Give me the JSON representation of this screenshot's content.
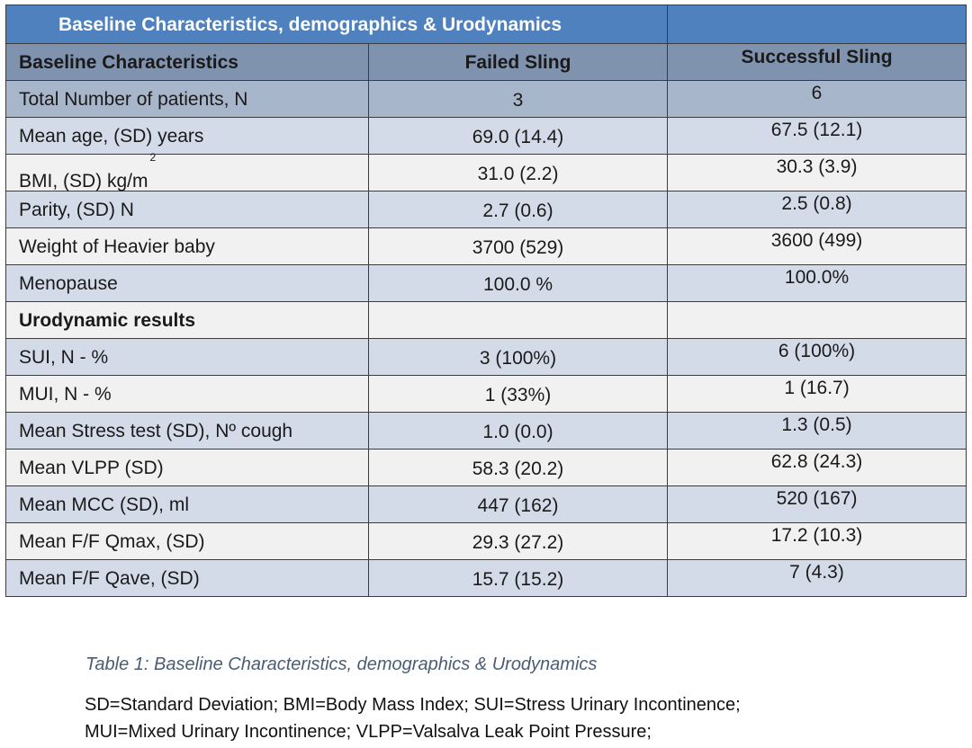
{
  "table": {
    "title": "Baseline Characteristics, demographics & Urodynamics",
    "columns": [
      "Baseline Characteristics",
      "Failed Sling",
      "Successful Sling"
    ],
    "rows": [
      {
        "label": "Total Number of patients, N",
        "failed": "3",
        "successful": "6"
      },
      {
        "label": "Mean age, (SD) years",
        "failed": "69.0 (14.4)",
        "successful": "67.5 (12.1)"
      },
      {
        "label": "BMI, (SD) kg/m",
        "label_sup": "2",
        "failed": "31.0 (2.2)",
        "successful": "30.3 (3.9)"
      },
      {
        "label": "Parity, (SD) N",
        "failed": "2.7 (0.6)",
        "successful": "2.5 (0.8)"
      },
      {
        "label": "Weight of Heavier baby",
        "failed": "3700 (529)",
        "successful": "3600 (499)"
      },
      {
        "label": "Menopause",
        "failed": "100.0 %",
        "successful": "100.0%"
      },
      {
        "label": "Urodynamic results",
        "section": true
      },
      {
        "label": "SUI, N - %",
        "failed": "3 (100%)",
        "successful": "6 (100%)"
      },
      {
        "label": "MUI, N - %",
        "failed": "1 (33%)",
        "successful": "1 (16.7)"
      },
      {
        "label": "Mean Stress test (SD), Nº cough",
        "failed": "1.0 (0.0)",
        "successful": "1.3 (0.5)"
      },
      {
        "label": "Mean VLPP (SD)",
        "failed": "58.3 (20.2)",
        "successful": "62.8 (24.3)"
      },
      {
        "label": "Mean MCC (SD), ml",
        "failed": "447 (162)",
        "successful": "520 (167)"
      },
      {
        "label": "Mean F/F Qmax, (SD)",
        "failed": "29.3 (27.2)",
        "successful": "17.2 (10.3)"
      },
      {
        "label": "Mean F/F Qave, (SD)",
        "failed": "15.7 (15.2)",
        "successful": "7 (4.3)"
      }
    ]
  },
  "caption": "Table 1: Baseline Characteristics, demographics & Urodynamics",
  "footnotes": [
    "SD=Standard Deviation; BMI=Body Mass Index; SUI=Stress Urinary Incontinence;",
    "MUI=Mixed Urinary Incontinence; VLPP=Valsalva Leak Point Pressure;"
  ],
  "colors": {
    "title_bg": "#4e81bd",
    "header_bg": "#7f92ae",
    "first_row_bg": "#a7b6cb",
    "stripe_blue": "#d4dbe8",
    "stripe_gray": "#f1f1f1",
    "caption_text": "#4a5d74"
  }
}
